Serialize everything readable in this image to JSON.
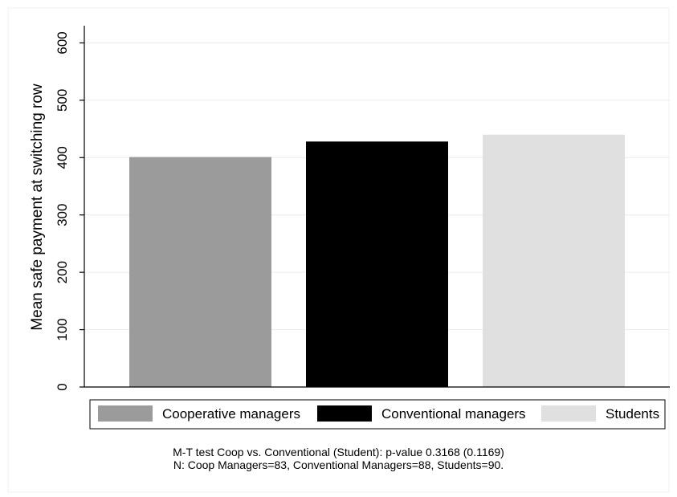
{
  "chart_data": {
    "type": "bar",
    "title": "",
    "xlabel": "",
    "ylabel": "Mean safe payment at switching row",
    "ylim": [
      0,
      630
    ],
    "yticks": [
      0,
      100,
      200,
      300,
      400,
      500,
      600
    ],
    "ytick_labels": [
      "0",
      "100",
      "200",
      "300",
      "400",
      "500",
      "600"
    ],
    "grid": true,
    "legend_placement": "bottom",
    "series": [
      {
        "name": "Cooperative managers",
        "value": 401,
        "color": "#9b9b9b"
      },
      {
        "name": "Conventional managers",
        "value": 428,
        "color": "#000000"
      },
      {
        "name": "Students",
        "value": 440,
        "color": "#e0e0e0"
      }
    ],
    "notes": [
      "M-T test Coop vs. Conventional (Student): p-value 0.3168 (0.1169)",
      "N: Coop Managers=83, Conventional Managers=88, Students=90."
    ]
  }
}
